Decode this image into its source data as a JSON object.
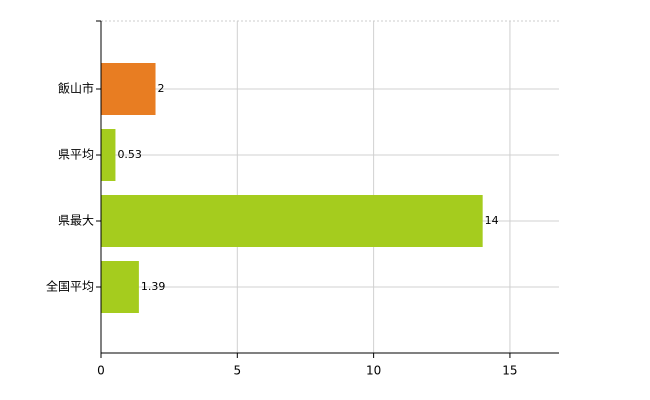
{
  "chart_data": {
    "type": "bar",
    "orientation": "horizontal",
    "categories": [
      "飯山市",
      "県平均",
      "県最大",
      "全国平均"
    ],
    "values": [
      2,
      0.53,
      14,
      1.39
    ],
    "colors": [
      "#e87d22",
      "#a5cc1e",
      "#a5cc1e",
      "#a5cc1e"
    ],
    "xlim": [
      0,
      16.8
    ],
    "xticks": [
      0,
      5,
      10,
      15
    ],
    "grid": true
  }
}
